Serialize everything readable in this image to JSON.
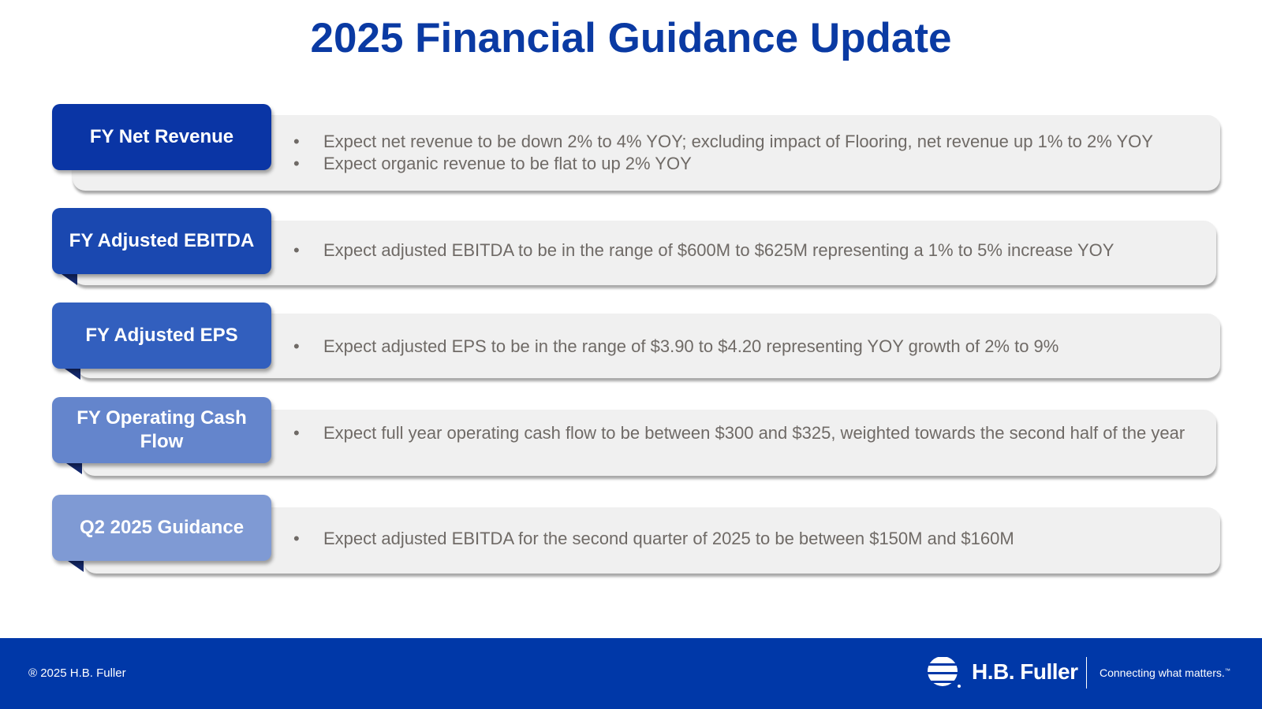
{
  "title": "2025 Financial Guidance Update",
  "colors": {
    "title": "#0a3aa3",
    "footer": "#0038a8",
    "panel": "#f0f0f0",
    "bullet_text": "#6f6a66",
    "fold": "#14286b"
  },
  "sections": [
    {
      "label": "FY Net Revenue",
      "color": "#0a35a5",
      "bullets": [
        "Expect net revenue to be down 2% to 4% YOY; excluding impact of Flooring, net revenue up 1% to 2% YOY",
        "Expect organic revenue to be flat to up 2% YOY"
      ]
    },
    {
      "label": "FY Adjusted EBITDA",
      "color": "#1a48b0",
      "bullets": [
        "Expect adjusted EBITDA to be in the range of $600M to $625M representing a 1% to 5% increase YOY"
      ]
    },
    {
      "label": "FY Adjusted EPS",
      "color": "#325fbe",
      "bullets": [
        "Expect adjusted EPS to be in the range of $3.90 to $4.20 representing YOY growth of 2% to 9%"
      ]
    },
    {
      "label": "FY Operating Cash Flow",
      "color": "#6485cc",
      "bullets": [
        "Expect full year operating cash flow to be between $300 and $325, weighted towards the second half of the year"
      ]
    },
    {
      "label": "Q2 2025 Guidance",
      "color": "#7f9ad4",
      "bullets": [
        "Expect adjusted EBITDA for the second quarter of 2025 to be between $150M and $160M"
      ]
    }
  ],
  "footer": {
    "copyright": "® 2025 H.B. Fuller",
    "logo_text": "H.B. Fuller",
    "tagline": "Connecting what matters.",
    "tagline_mark": "™",
    "logo_icon": "hb-fuller-stripes-icon"
  }
}
